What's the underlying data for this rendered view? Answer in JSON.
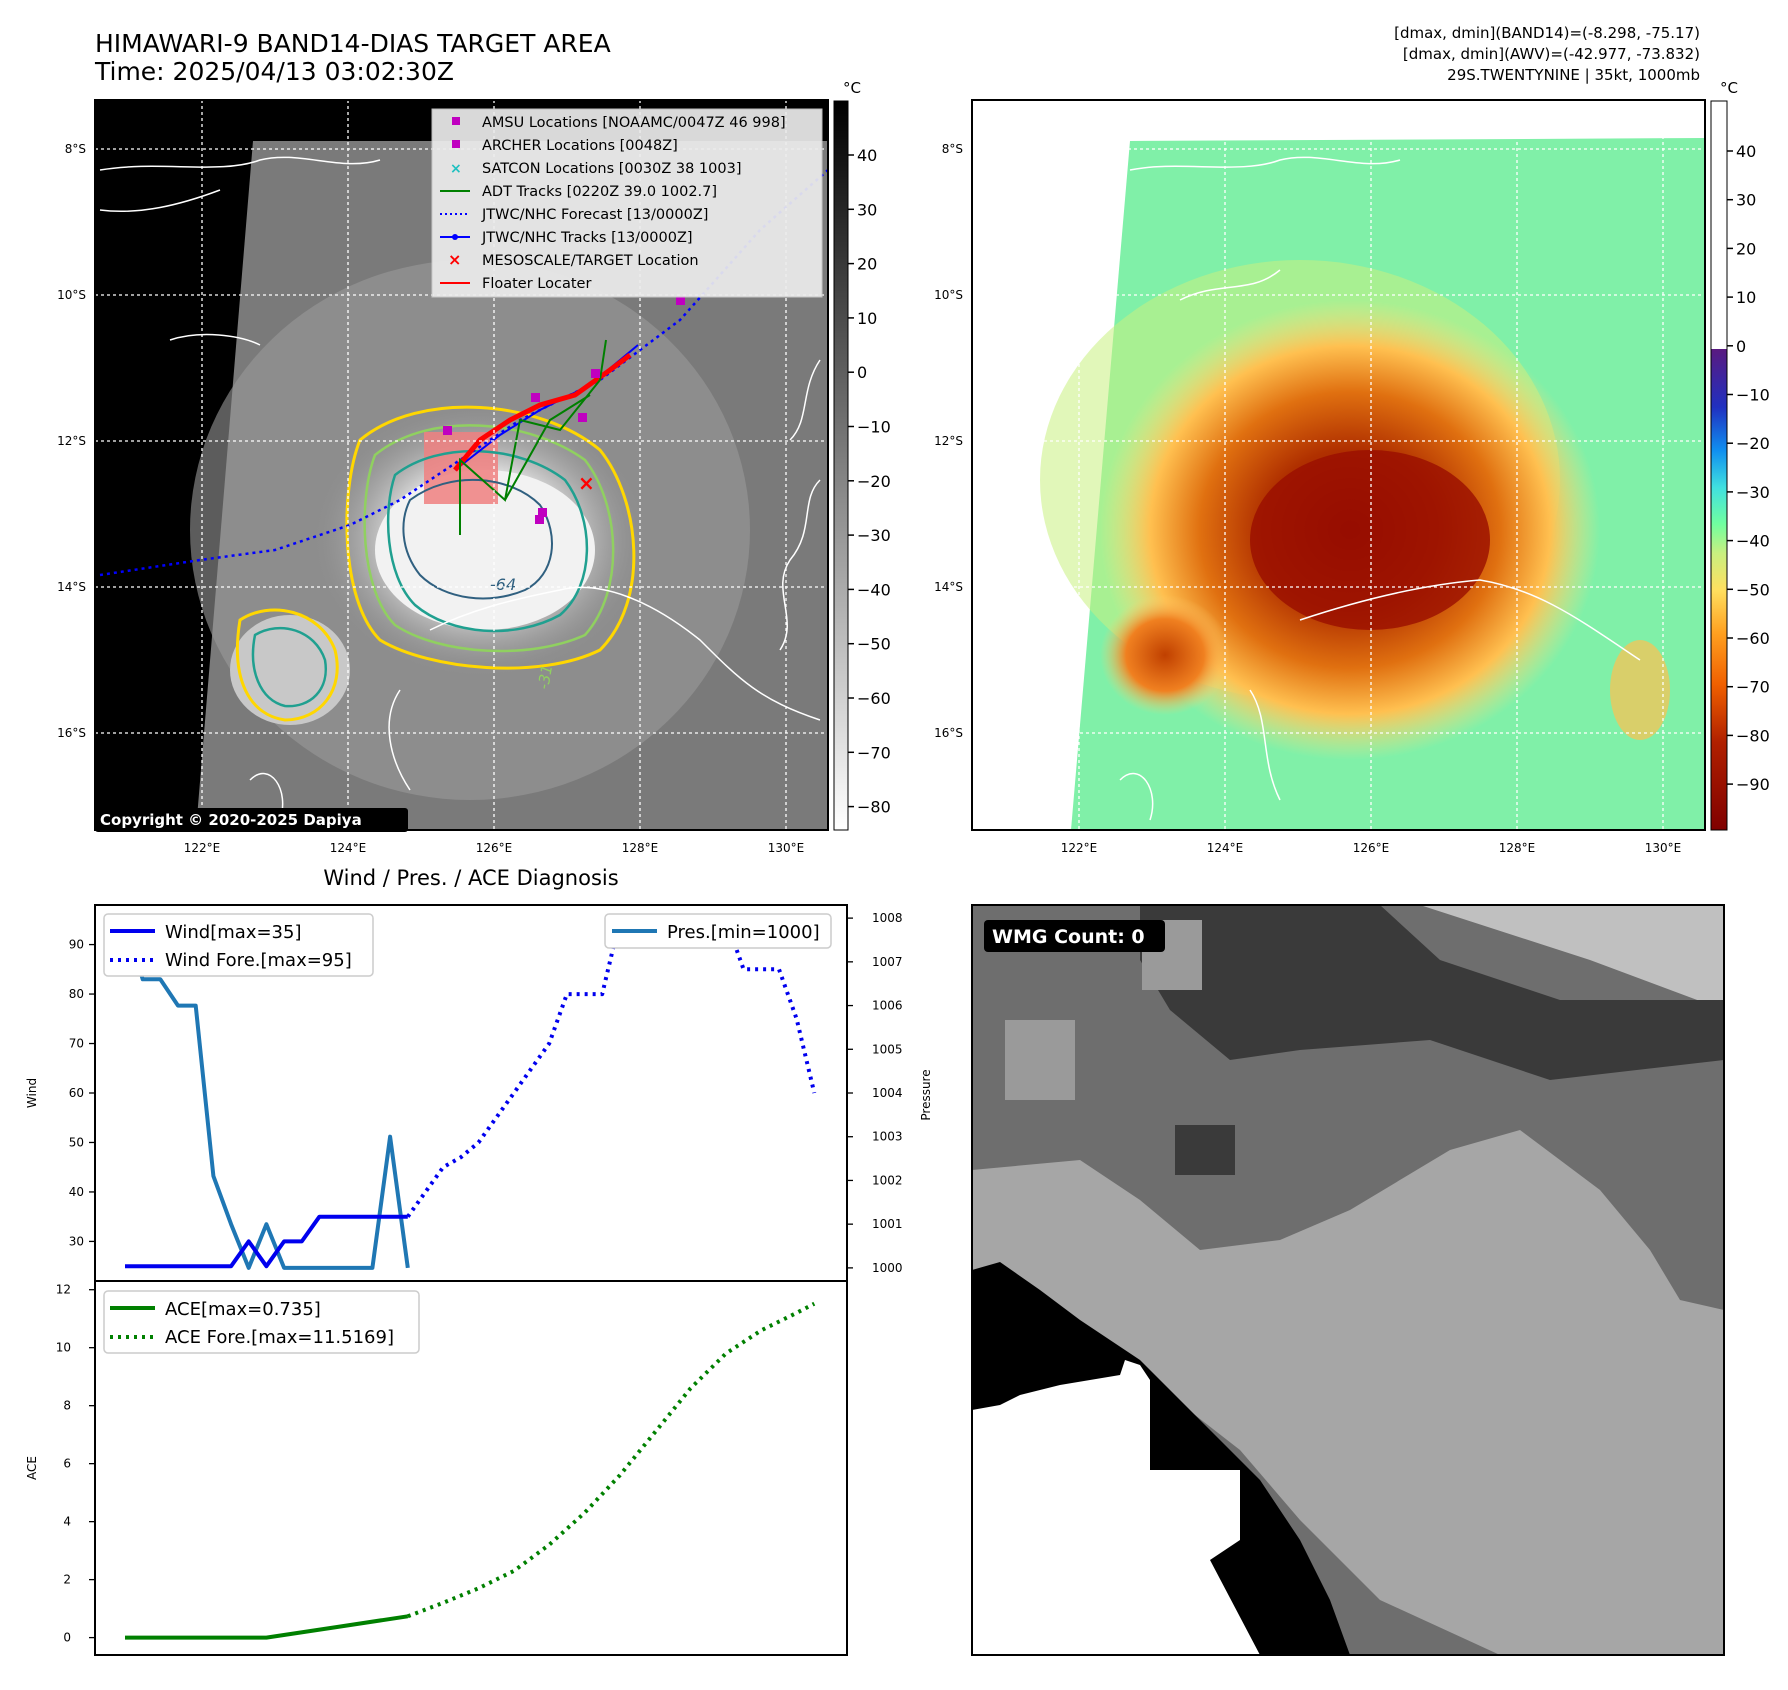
{
  "header": {
    "title_line1": "HIMAWARI-9 BAND14-DIAS TARGET AREA",
    "title_line2": "Time: 2025/04/13 03:02:30Z",
    "right_line1": "[dmax, dmin](BAND14)=(-8.298, -75.17)",
    "right_line2": "[dmax, dmin](AWV)=(-42.977, -73.832)",
    "right_line3": "29S.TWENTYNINE | 35kt, 1000mb"
  },
  "map": {
    "lat_labels": [
      "8°S",
      "10°S",
      "12°S",
      "14°S",
      "16°S"
    ],
    "lon_labels": [
      "122°E",
      "124°E",
      "126°E",
      "128°E",
      "130°E"
    ],
    "copyright": "Copyright © 2020-2025 Dapiya",
    "contour_labels": [
      "-64",
      "-31"
    ],
    "legend": [
      {
        "label": "AMSU Locations [NOAAMC/0047Z 46 998]",
        "color": "#c000c0",
        "marker": "square"
      },
      {
        "label": "ARCHER Locations [0048Z]",
        "color": "#c000c0",
        "marker": "square"
      },
      {
        "label": "SATCON Locations [0030Z 38 1003]",
        "color": "#20c0c0",
        "marker": "x"
      },
      {
        "label": "ADT Tracks [0220Z 39.0 1002.7]",
        "color": "#008000",
        "marker": "line"
      },
      {
        "label": "JTWC/NHC Forecast [13/0000Z]",
        "color": "#0000ff",
        "marker": "dotted"
      },
      {
        "label": "JTWC/NHC Tracks [13/0000Z]",
        "color": "#0000ff",
        "marker": "line-dot"
      },
      {
        "label": "MESOSCALE/TARGET Location",
        "color": "#ff0000",
        "marker": "x"
      },
      {
        "label": "Floater Locater",
        "color": "#ff0000",
        "marker": "line"
      }
    ]
  },
  "colorbar_gray": {
    "unit": "°C",
    "ticks": [
      "40",
      "30",
      "20",
      "10",
      "0",
      "−10",
      "−20",
      "−30",
      "−40",
      "−50",
      "−60",
      "−70",
      "−80"
    ]
  },
  "colorbar_color": {
    "unit": "°C",
    "ticks": [
      "40",
      "30",
      "20",
      "10",
      "0",
      "−10",
      "−20",
      "−30",
      "−40",
      "−50",
      "−60",
      "−70",
      "−80",
      "−90"
    ]
  },
  "diag": {
    "title": "Wind / Pres. / ACE Diagnosis",
    "wind_ylabel": "Wind",
    "pres_ylabel": "Pressure",
    "ace_ylabel": "ACE",
    "legend_wind": "Wind[max=35]",
    "legend_wind_fore": "Wind Fore.[max=95]",
    "legend_pres": "Pres.[min=1000]",
    "legend_ace": "ACE[max=0.735]",
    "legend_ace_fore": "ACE Fore.[max=11.5169]",
    "wind_ticks": [
      "90",
      "80",
      "70",
      "60",
      "50",
      "40",
      "30"
    ],
    "pres_ticks": [
      "1008",
      "1007",
      "1006",
      "1005",
      "1004",
      "1003",
      "1002",
      "1001",
      "1000"
    ],
    "ace_ticks": [
      "12",
      "10",
      "8",
      "6",
      "4",
      "2",
      "0"
    ]
  },
  "wmg": {
    "label": "WMG Count: 0"
  },
  "chart_data": [
    {
      "type": "line",
      "title": "Wind / Pres. / ACE Diagnosis",
      "ylabel": "Wind",
      "ylim": [
        22,
        98
      ],
      "series": [
        {
          "name": "Wind[max=35]",
          "style": "solid",
          "color": "#0000ee",
          "x": [
            0,
            1,
            2,
            3,
            4,
            5,
            6,
            7,
            8,
            9,
            10,
            11,
            12,
            13,
            14,
            15,
            16
          ],
          "values": [
            25,
            25,
            25,
            25,
            25,
            25,
            25,
            30,
            25,
            30,
            30,
            35,
            35,
            35,
            35,
            35,
            35
          ]
        },
        {
          "name": "Wind Fore.[max=95]",
          "style": "dotted",
          "color": "#0000ee",
          "x": [
            16,
            17,
            18,
            19,
            20,
            21,
            22,
            23,
            24,
            25,
            26,
            27,
            28,
            29,
            30,
            31,
            32,
            33,
            34,
            35,
            36,
            37,
            38,
            39
          ],
          "values": [
            35,
            40,
            45,
            47,
            50,
            55,
            60,
            65,
            70,
            80,
            80,
            80,
            95,
            95,
            95,
            95,
            95,
            95,
            95,
            85,
            85,
            85,
            75,
            60
          ]
        }
      ]
    },
    {
      "type": "line",
      "ylabel": "Pressure",
      "ylim": [
        999.7,
        1008.3
      ],
      "series": [
        {
          "name": "Pres.[min=1000]",
          "style": "solid",
          "color": "#1f77b4",
          "x": [
            0,
            1,
            2,
            3,
            4,
            5,
            6,
            7,
            8,
            9,
            10,
            11,
            12,
            13,
            14,
            15,
            16
          ],
          "values": [
            1008,
            1006.6,
            1006.6,
            1006,
            1006,
            1002.1,
            1001,
            1000,
            1001,
            1000,
            1000,
            1000,
            1000,
            1000,
            1000,
            1003,
            1000
          ]
        }
      ]
    },
    {
      "type": "line",
      "ylabel": "ACE",
      "ylim": [
        -0.6,
        12.3
      ],
      "series": [
        {
          "name": "ACE[max=0.735]",
          "style": "solid",
          "color": "#008000",
          "x": [
            0,
            8,
            12,
            16
          ],
          "values": [
            0,
            0,
            0.3675,
            0.735
          ]
        },
        {
          "name": "ACE Fore.[max=11.5169]",
          "style": "dotted",
          "color": "#008000",
          "x": [
            16,
            18,
            20,
            22,
            24,
            26,
            28,
            30,
            32,
            34,
            36,
            38,
            39
          ],
          "values": [
            0.735,
            1.2,
            1.7,
            2.3,
            3.2,
            4.3,
            5.6,
            7.1,
            8.6,
            9.8,
            10.6,
            11.2,
            11.5169
          ]
        }
      ]
    }
  ]
}
